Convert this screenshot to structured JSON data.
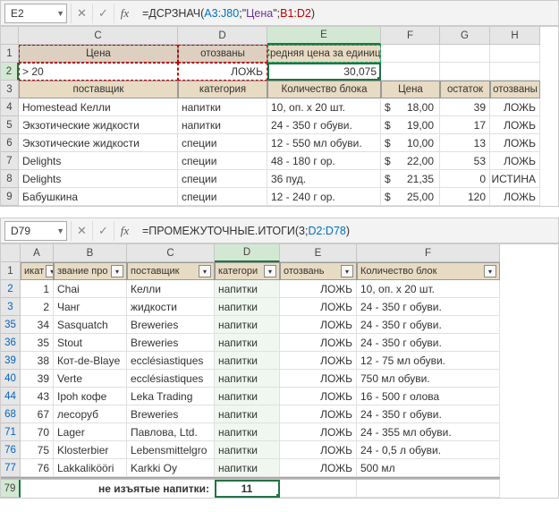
{
  "panel1": {
    "nameBox": "E2",
    "formulaPrefix": "=ДСРЗНАЧ(",
    "formulaArg1": "A3:J80",
    "formulaSep1": ";\"",
    "formulaArg2": "Цена",
    "formulaSep2": "\";",
    "formulaArg3": "B1:D2",
    "formulaSuffix": ")",
    "cols": [
      "",
      "C",
      "D",
      "E",
      "F",
      "G",
      "H"
    ],
    "row1": {
      "c": "Цена",
      "d": "отозваны",
      "e": "Средняя цена за единицу"
    },
    "row2": {
      "c": "> 20",
      "d": "ЛОЖЬ",
      "e": "30,075"
    },
    "row3": {
      "c": "поставщик",
      "d": "категория",
      "e": "Количество блока",
      "f": "Цена",
      "g": "остаток",
      "h": "отозваны"
    },
    "rows": [
      {
        "n": "4",
        "c": "Homestead Келли",
        "d": "напитки",
        "e": "10, оп. x 20 шт.",
        "f": "18,00",
        "g": "39",
        "h": "ЛОЖЬ"
      },
      {
        "n": "5",
        "c": "Экзотические жидкости",
        "d": "напитки",
        "e": "24 - 350 г обуви.",
        "f": "19,00",
        "g": "17",
        "h": "ЛОЖЬ"
      },
      {
        "n": "6",
        "c": "Экзотические жидкости",
        "d": "специи",
        "e": "12 - 550 мл обуви.",
        "f": "10,00",
        "g": "13",
        "h": "ЛОЖЬ"
      },
      {
        "n": "7",
        "c": "Delights",
        "d": "специи",
        "e": "48 - 180 г ор.",
        "f": "22,00",
        "g": "53",
        "h": "ЛОЖЬ"
      },
      {
        "n": "8",
        "c": "Delights",
        "d": "специи",
        "e": "36 пуд.",
        "f": "21,35",
        "g": "0",
        "h": "ИСТИНА"
      },
      {
        "n": "9",
        "c": "Бабушкина",
        "d": "специи",
        "e": "12 - 240 г ор.",
        "f": "25,00",
        "g": "120",
        "h": "ЛОЖЬ"
      }
    ]
  },
  "panel2": {
    "nameBox": "D79",
    "formulaPrefix": "=ПРОМЕЖУТОЧНЫЕ.ИТОГИ(3;",
    "formulaArg1": "D2:D78",
    "formulaSuffix": ")",
    "cols": [
      "",
      "A",
      "B",
      "C",
      "D",
      "E",
      "F"
    ],
    "headers": [
      "икат",
      "звание про",
      "поставщик",
      "категори",
      "отозвань",
      "Количество блок"
    ],
    "rows": [
      {
        "n": "2",
        "a": "1",
        "b": "Chai",
        "c": "Келли",
        "d": "напитки",
        "e": "ЛОЖЬ",
        "f": "10, оп. x 20 шт."
      },
      {
        "n": "3",
        "a": "2",
        "b": "Чанг",
        "c": "жидкости",
        "d": "напитки",
        "e": "ЛОЖЬ",
        "f": "24 - 350 г обуви."
      },
      {
        "n": "35",
        "a": "34",
        "b": "Sasquatch",
        "c": "Breweries",
        "d": "напитки",
        "e": "ЛОЖЬ",
        "f": "24 - 350 г обуви."
      },
      {
        "n": "36",
        "a": "35",
        "b": "Stout",
        "c": "Breweries",
        "d": "напитки",
        "e": "ЛОЖЬ",
        "f": "24 - 350 г обуви."
      },
      {
        "n": "39",
        "a": "38",
        "b": "Кот-de-Blaye",
        "c": "ecclésiastiques",
        "d": "напитки",
        "e": "ЛОЖЬ",
        "f": "12 - 75 мл обуви."
      },
      {
        "n": "40",
        "a": "39",
        "b": "Verte",
        "c": "ecclésiastiques",
        "d": "напитки",
        "e": "ЛОЖЬ",
        "f": "750 мл обуви."
      },
      {
        "n": "44",
        "a": "43",
        "b": "Ipoh кофе",
        "c": "Leka Trading",
        "d": "напитки",
        "e": "ЛОЖЬ",
        "f": "16 - 500 г олова"
      },
      {
        "n": "68",
        "a": "67",
        "b": "лесоруб",
        "c": "Breweries",
        "d": "напитки",
        "e": "ЛОЖЬ",
        "f": "24 - 350 г обуви."
      },
      {
        "n": "71",
        "a": "70",
        "b": "Lager",
        "c": "Павлова, Ltd.",
        "d": "напитки",
        "e": "ЛОЖЬ",
        "f": "24 - 355 мл обуви."
      },
      {
        "n": "76",
        "a": "75",
        "b": "Klosterbier",
        "c": "Lebensmittelgro",
        "d": "напитки",
        "e": "ЛОЖЬ",
        "f": "24 - 0,5 л обуви."
      },
      {
        "n": "77",
        "a": "76",
        "b": "Lakkalikööri",
        "c": "Karkki Oy",
        "d": "напитки",
        "e": "ЛОЖЬ",
        "f": "500 мл"
      }
    ],
    "summaryLabel": "не изъятые напитки:",
    "summaryValue": "11",
    "summaryRow": "79"
  },
  "dollar": "$"
}
